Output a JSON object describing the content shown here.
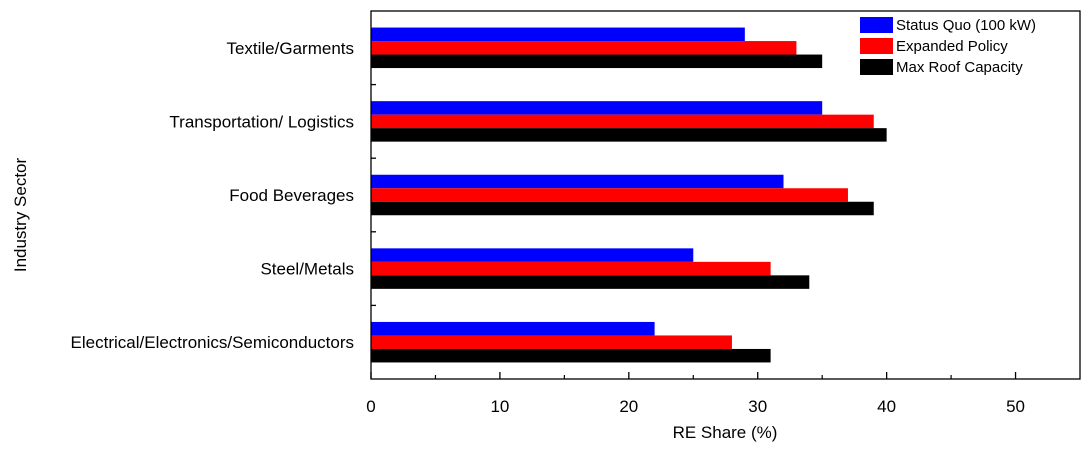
{
  "chart_data": {
    "type": "bar",
    "orientation": "horizontal",
    "xlabel": "RE Share (%)",
    "ylabel": "Industry Sector",
    "xlim": [
      0,
      55
    ],
    "xticks": [
      0,
      10,
      20,
      30,
      40,
      50
    ],
    "categories": [
      "Textile/Garments",
      "Transportation/ Logistics",
      "Food Beverages",
      "Steel/Metals",
      "Electrical/Electronics/Semiconductors"
    ],
    "series": [
      {
        "name": "Status Quo (100 kW)",
        "color": "#0000ff",
        "values": [
          29,
          35,
          32,
          25,
          22
        ]
      },
      {
        "name": "Expanded Policy",
        "color": "#ff0000",
        "values": [
          33,
          39,
          37,
          31,
          28
        ]
      },
      {
        "name": "Max Roof Capacity",
        "color": "#000000",
        "values": [
          35,
          40,
          39,
          34,
          31
        ]
      }
    ],
    "legend_position": "top-right",
    "grid": false
  }
}
